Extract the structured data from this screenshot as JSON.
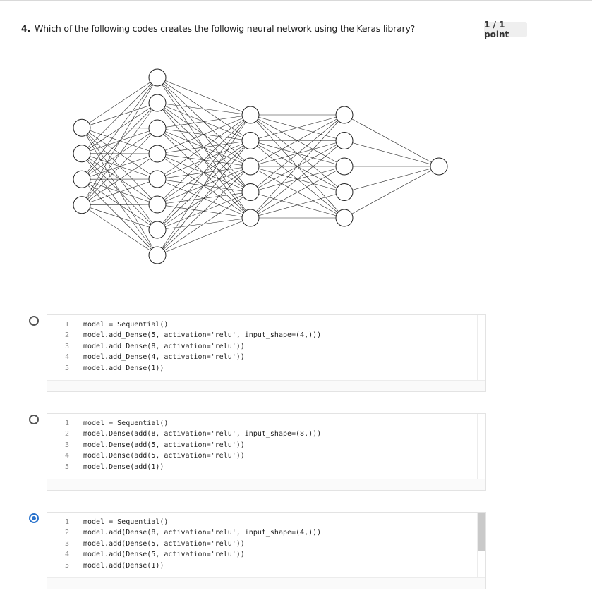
{
  "question": {
    "number": "4.",
    "text": "Which of the following codes creates the followig neural network using the Keras library?",
    "score": "1 / 1 point"
  },
  "diagram": {
    "layers": [
      4,
      8,
      5,
      5,
      1
    ]
  },
  "options": [
    {
      "selected": false,
      "lines": [
        {
          "n": "1",
          "code": "model = Sequential()"
        },
        {
          "n": "2",
          "code": "model.add_Dense(5, activation='relu', input_shape=(4,)))"
        },
        {
          "n": "3",
          "code": "model.add_Dense(8, activation='relu'))"
        },
        {
          "n": "4",
          "code": "model.add_Dense(4, activation='relu'))"
        },
        {
          "n": "5",
          "code": "model.add_Dense(1))"
        }
      ]
    },
    {
      "selected": false,
      "lines": [
        {
          "n": "1",
          "code": "model = Sequential()"
        },
        {
          "n": "2",
          "code": "model.Dense(add(8, activation='relu', input_shape=(8,)))"
        },
        {
          "n": "3",
          "code": "model.Dense(add(5, activation='relu'))"
        },
        {
          "n": "4",
          "code": "model.Dense(add(5, activation='relu'))"
        },
        {
          "n": "5",
          "code": "model.Dense(add(1))"
        }
      ]
    },
    {
      "selected": true,
      "lines": [
        {
          "n": "1",
          "code": "model = Sequential()"
        },
        {
          "n": "2",
          "code": "model.add(Dense(8, activation='relu', input_shape=(4,)))"
        },
        {
          "n": "3",
          "code": "model.add(Dense(5, activation='relu'))"
        },
        {
          "n": "4",
          "code": "model.add(Dense(5, activation='relu'))"
        },
        {
          "n": "5",
          "code": "model.add(Dense(1))"
        }
      ]
    }
  ]
}
